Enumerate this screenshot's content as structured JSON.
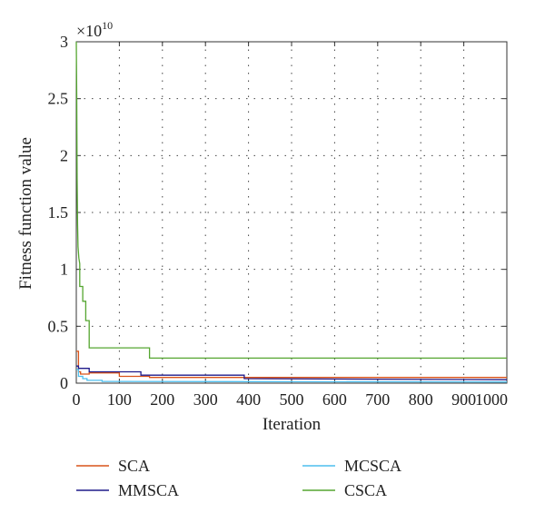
{
  "chart_data": {
    "type": "line",
    "title": "",
    "xlabel": "Iteration",
    "ylabel": "Fitness function value",
    "y_multiplier": "×10",
    "y_multiplier_exponent": "10",
    "xlim": [
      0,
      1000
    ],
    "ylim": [
      0,
      3
    ],
    "xticks": [
      0,
      100,
      200,
      300,
      400,
      500,
      600,
      700,
      800,
      900,
      1000
    ],
    "yticks": [
      0,
      0.5,
      1,
      1.5,
      2,
      2.5,
      3
    ],
    "ytick_labels": [
      "0",
      "0.5",
      "1",
      "1.5",
      "2",
      "2.5",
      "3"
    ],
    "grid": true,
    "legend_position": "bottom",
    "series": [
      {
        "name": "SCA",
        "color": "#d95319",
        "x": [
          0,
          5,
          5,
          10,
          10,
          30,
          30,
          100,
          100,
          170,
          170,
          1000
        ],
        "y": [
          0.28,
          0.28,
          0.1,
          0.1,
          0.08,
          0.08,
          0.09,
          0.09,
          0.06,
          0.06,
          0.05,
          0.05
        ]
      },
      {
        "name": "MMSCA",
        "color": "#1f1a8a",
        "x": [
          0,
          5,
          5,
          30,
          30,
          150,
          150,
          390,
          390,
          1000
        ],
        "y": [
          0.15,
          0.15,
          0.13,
          0.13,
          0.1,
          0.1,
          0.07,
          0.07,
          0.04,
          0.03
        ]
      },
      {
        "name": "MCSCA",
        "color": "#4dbeee",
        "x": [
          0,
          5,
          5,
          15,
          15,
          25,
          25,
          60,
          60,
          1000
        ],
        "y": [
          0.12,
          0.12,
          0.06,
          0.06,
          0.04,
          0.04,
          0.025,
          0.025,
          0.015,
          0.01
        ]
      },
      {
        "name": "CSCA",
        "color": "#55a630",
        "x": [
          0,
          1,
          2,
          3,
          4,
          6,
          8,
          8,
          15,
          15,
          22,
          22,
          30,
          30,
          100,
          100,
          170,
          170,
          1000
        ],
        "y": [
          3.0,
          2.5,
          1.8,
          1.4,
          1.2,
          1.1,
          1.05,
          0.85,
          0.85,
          0.72,
          0.72,
          0.55,
          0.55,
          0.31,
          0.31,
          0.31,
          0.31,
          0.22,
          0.22
        ]
      }
    ]
  }
}
